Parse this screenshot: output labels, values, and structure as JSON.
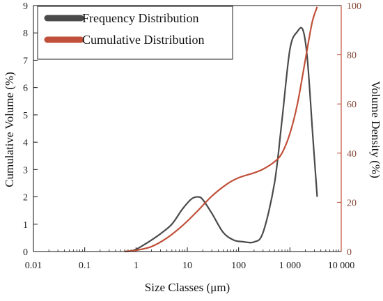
{
  "chart_data": {
    "type": "line",
    "xlabel": "Size Classes (μm)",
    "ylabel_left": "Cumulative Volume (%)",
    "ylabel_right": "Volume Density (%)",
    "xscale": "log",
    "xlim": [
      0.01,
      10000
    ],
    "ylim_left": [
      0,
      9
    ],
    "ylim_right": [
      0,
      100
    ],
    "x_tick_labels": [
      "0.01",
      "0.1",
      "1",
      "10",
      "100",
      "1 000",
      "10 000"
    ],
    "y_left_tick_labels": [
      "0",
      "1",
      "2",
      "3",
      "4",
      "5",
      "6",
      "7",
      "8",
      "9"
    ],
    "y_right_tick_labels": [
      "0",
      "20",
      "40",
      "60",
      "80",
      "100"
    ],
    "legend_position": "top-left",
    "grid": false,
    "series": [
      {
        "name": "Frequency Distribution",
        "axis": "left",
        "color": "#4a4a4a",
        "x": [
          0.6,
          0.8,
          1,
          1.3,
          2,
          3,
          5,
          8,
          12,
          16,
          20,
          30,
          50,
          80,
          120,
          200,
          300,
          500,
          700,
          1000,
          1400,
          1800,
          2200,
          2800,
          3400
        ],
        "y": [
          0,
          0.02,
          0.08,
          0.2,
          0.42,
          0.65,
          1.0,
          1.55,
          1.92,
          2.0,
          1.9,
          1.4,
          0.7,
          0.42,
          0.36,
          0.35,
          0.7,
          2.5,
          4.8,
          7.4,
          8.05,
          8.1,
          7.0,
          4.2,
          2.0
        ]
      },
      {
        "name": "Cumulative Distribution",
        "axis": "right",
        "color": "#c0503a",
        "x": [
          0.6,
          1,
          2,
          4,
          8,
          15,
          30,
          60,
          100,
          200,
          300,
          500,
          700,
          1000,
          1400,
          2000,
          2700,
          3400
        ],
        "y": [
          0,
          0.5,
          2,
          5.5,
          10.5,
          16,
          22.5,
          27.5,
          30,
          32,
          33.5,
          36.5,
          40,
          48,
          60,
          78,
          93,
          99.5
        ]
      }
    ]
  }
}
